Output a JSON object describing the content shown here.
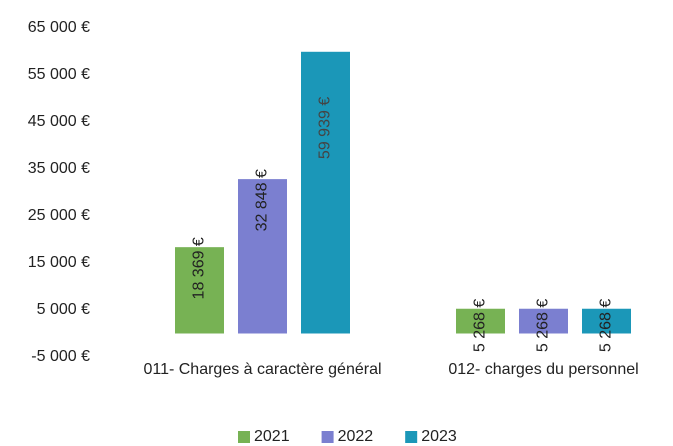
{
  "chart_data": {
    "type": "bar",
    "categories": [
      "011- Charges à caractère général",
      "012- charges du personnel"
    ],
    "series": [
      {
        "name": "2021",
        "color": "#77b254",
        "values": [
          18369,
          5268
        ],
        "value_labels": [
          "18 369 €",
          "5 268 €"
        ]
      },
      {
        "name": "2022",
        "color": "#7b7fd0",
        "values": [
          32848,
          5268
        ],
        "value_labels": [
          "32 848 €",
          "5 268 €"
        ]
      },
      {
        "name": "2023",
        "color": "#1b97b8",
        "values": [
          59939,
          5268
        ],
        "value_labels": [
          "59 939 €",
          "5 268 €"
        ]
      }
    ],
    "ylim": [
      -5000,
      65000
    ],
    "yticks": [
      {
        "value": -5000,
        "label": "-5 000 €"
      },
      {
        "value": 5000,
        "label": "5 000 €"
      },
      {
        "value": 15000,
        "label": "15 000 €"
      },
      {
        "value": 25000,
        "label": "25 000 €"
      },
      {
        "value": 35000,
        "label": "35 000 €"
      },
      {
        "value": 45000,
        "label": "45 000 €"
      },
      {
        "value": 55000,
        "label": "55 000 €"
      },
      {
        "value": 65000,
        "label": "65 000 €"
      }
    ],
    "grid": false,
    "legend": "bottom"
  }
}
